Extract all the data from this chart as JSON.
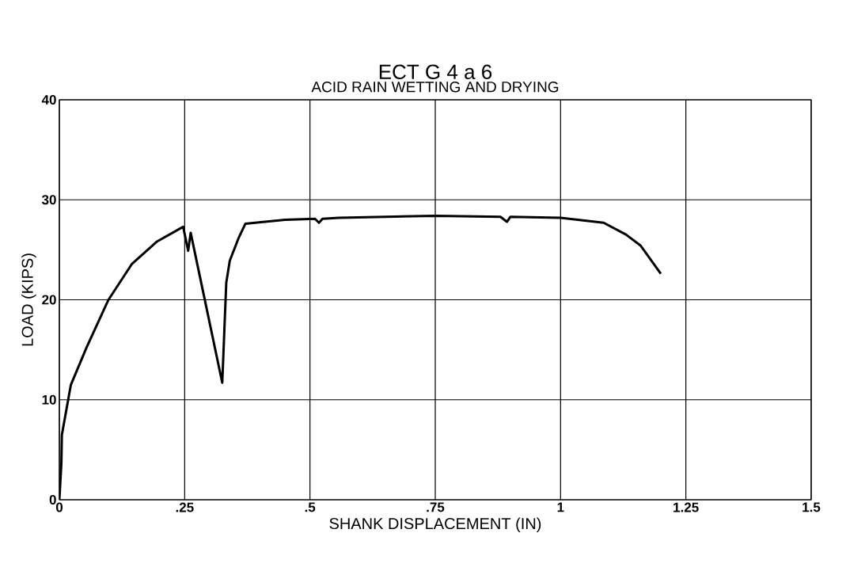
{
  "chart_data": {
    "type": "line",
    "title": "ECT G 4 a 6",
    "subtitle": "ACID RAIN WETTING AND DRYING",
    "xlabel": "SHANK DISPLACEMENT (IN)",
    "ylabel": "LOAD (KIPS)",
    "xlim": [
      0,
      1.5
    ],
    "ylim": [
      0,
      40
    ],
    "xticks": [
      0,
      {
        "value": 0.25,
        "label": ".25"
      },
      {
        "value": 0.5,
        "label": ".5"
      },
      {
        "value": 0.75,
        "label": ".75"
      },
      1,
      1.25,
      1.5
    ],
    "yticks": [
      0,
      10,
      20,
      30,
      40
    ],
    "grid": true,
    "marker": "none",
    "line_style": "solid",
    "series": [
      {
        "color": "#000000",
        "x": [
          0,
          0.004,
          0.005,
          0.023,
          0.054,
          0.098,
          0.145,
          0.194,
          0.247,
          0.257,
          0.262,
          0.325,
          0.333,
          0.34,
          0.357,
          0.371,
          0.45,
          0.51,
          0.518,
          0.525,
          0.558,
          0.75,
          0.88,
          0.893,
          0.9,
          1.0,
          1.086,
          1.131,
          1.16,
          1.2
        ],
        "values": [
          0,
          3.6,
          6.5,
          11.5,
          15.2,
          20,
          23.6,
          25.8,
          27.3,
          24.9,
          26.7,
          11.7,
          21.7,
          23.9,
          26.1,
          27.6,
          28.0,
          28.1,
          27.7,
          28.1,
          28.2,
          28.4,
          28.3,
          27.8,
          28.3,
          28.2,
          27.7,
          26.5,
          25.4,
          22.6
        ]
      }
    ]
  }
}
